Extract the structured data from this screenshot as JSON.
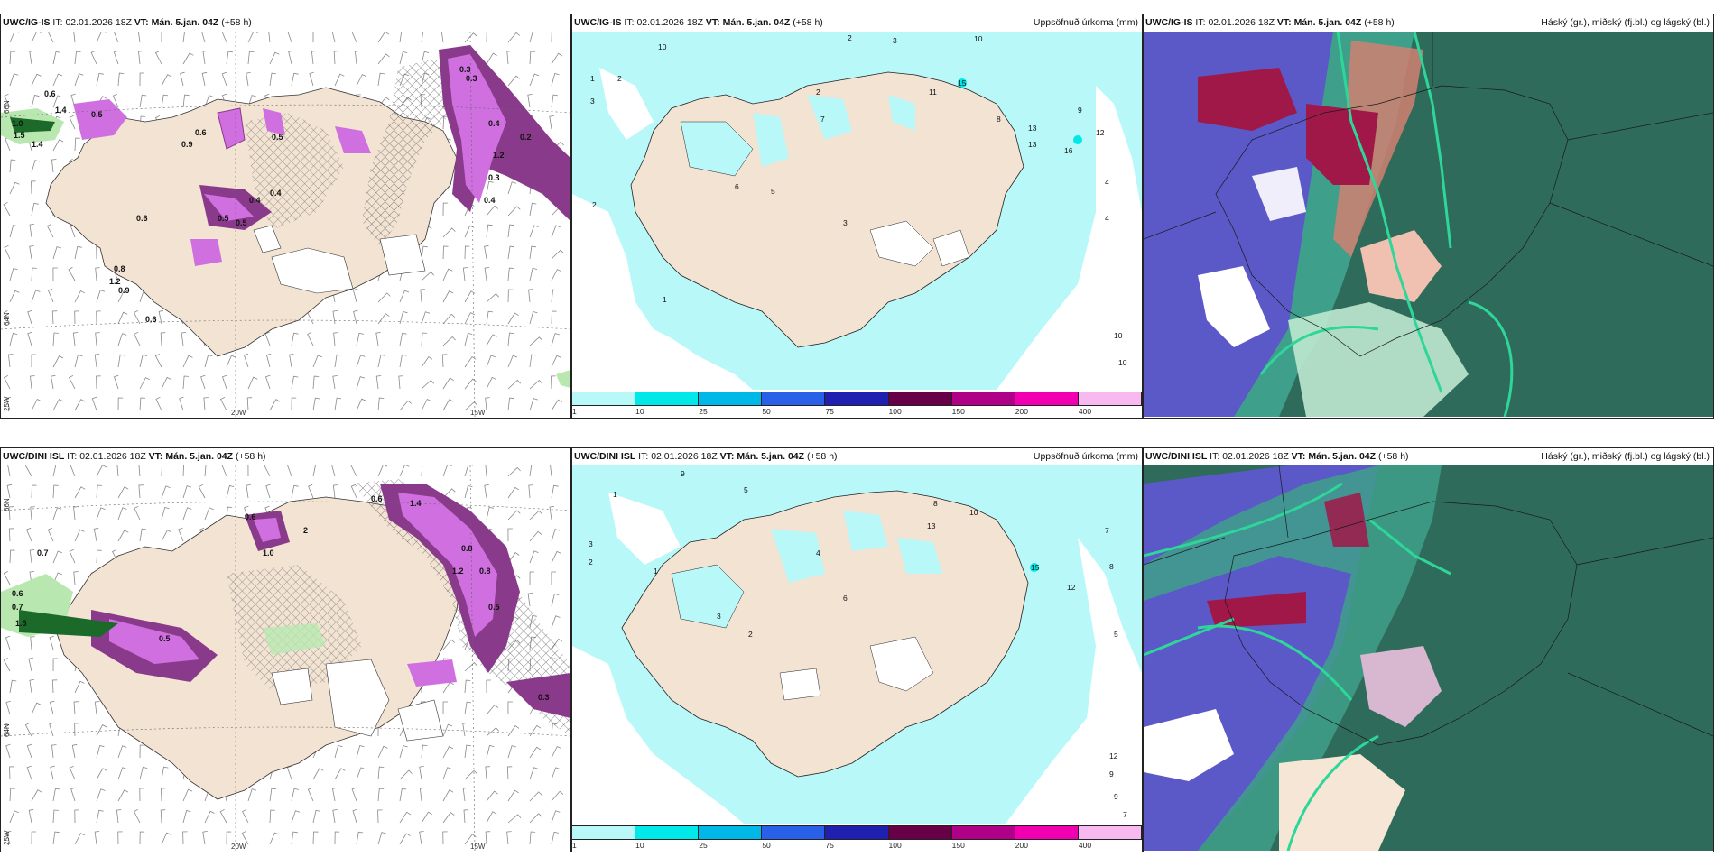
{
  "top": {
    "left": {
      "model": "UWC/IG-IS",
      "it_label": "IT:",
      "it": "02.01.2026 18Z",
      "vt_label": "VT:",
      "vt": "Mán. 5.jan. 04Z",
      "lead": "(+58 h)",
      "right_title": ""
    },
    "mid": {
      "model": "UWC/IG-IS",
      "it_label": "IT:",
      "it": "02.01.2026 18Z",
      "vt_label": "VT:",
      "vt": "Mán. 5.jan. 04Z",
      "lead": "(+58 h)",
      "right_title": "Uppsöfnuð úrkoma (mm)"
    },
    "right": {
      "model": "UWC/IG-IS",
      "it_label": "IT:",
      "it": "02.01.2026 18Z",
      "vt_label": "VT:",
      "vt": "Mán. 5.jan. 04Z",
      "lead": "(+58 h)",
      "right_title": "Háský (gr.), miðský (fj.bl.) og lágský (bl.)"
    }
  },
  "bottom": {
    "left": {
      "model": "UWC/DINI ISL",
      "it_label": "IT:",
      "it": "02.01.2026 18Z",
      "vt_label": "VT:",
      "vt": "Mán. 5.jan. 04Z",
      "lead": "(+58 h)",
      "right_title": ""
    },
    "mid": {
      "model": "UWC/DINI ISL",
      "it_label": "IT:",
      "it": "02.01.2026 18Z",
      "vt_label": "VT:",
      "vt": "Mán. 5.jan. 04Z",
      "lead": "(+58 h)",
      "right_title": "Uppsöfnuð úrkoma (mm)"
    },
    "right": {
      "model": "UWC/DINI ISL",
      "it_label": "IT:",
      "it": "02.01.2026 18Z",
      "vt_label": "VT:",
      "vt": "Mán. 5.jan. 04Z",
      "lead": "(+58 h)",
      "right_title": "Háský (gr.), miðský (fj.bl.) og lágský (bl.)"
    }
  },
  "axes": {
    "lon_labels": [
      "20W",
      "15W"
    ],
    "lat_labels": [
      "66N",
      "64N"
    ],
    "lon_left": "25W"
  },
  "colorbar": {
    "ticks": [
      "1",
      "10",
      "25",
      "50",
      "75",
      "100",
      "150",
      "200",
      "400"
    ],
    "colors": [
      "#b8f8f8",
      "#00e8e8",
      "#00b8e8",
      "#2860e8",
      "#2020b0",
      "#680048",
      "#b00088",
      "#f000b0",
      "#f8b8f0"
    ]
  },
  "colors": {
    "land": "#f3e3d3",
    "sea_white": "#ffffff",
    "precip_light": "#b8f8f8",
    "precip_mid": "#00e8e8",
    "snow_magenta": "#d070e0",
    "snow_dark": "#8a3a8a",
    "green_light": "#b8e8b0",
    "cloud_high": "#2f6b5a",
    "cloud_mid": "#5b58c8",
    "cloud_low": "#2ed69a",
    "cloud_red": "#a01848"
  },
  "labels_top_left": [
    "0.6",
    "1.0",
    "1.5",
    "1.4",
    "0.9",
    "0.6",
    "0.5",
    "0.5",
    "0.4",
    "0.3",
    "0.3",
    "0.4",
    "0.2",
    "1.2",
    "0.3",
    "0.4",
    "0.5",
    "0.6",
    "0.4",
    "0.5",
    "0.8",
    "0.9",
    "0.6",
    "1.2",
    "1.4"
  ],
  "labels_bottom_left": [
    "0.7",
    "0.6",
    "0.7",
    "1.5",
    "0.6",
    "1.0",
    "0.6",
    "1.4",
    "0.8",
    "1.2",
    "0.5",
    "0.3",
    "0.5",
    "0.8",
    "2"
  ],
  "labels_top_mid": [
    "10",
    "1",
    "3",
    "2",
    "2",
    "3",
    "2",
    "10",
    "15",
    "11",
    "13",
    "16",
    "12",
    "10",
    "10",
    "13",
    "4",
    "9",
    "8",
    "6",
    "5",
    "7",
    "3",
    "2",
    "4",
    "1"
  ],
  "labels_bottom_mid": [
    "9",
    "5",
    "1",
    "3",
    "2",
    "8",
    "13",
    "10",
    "15",
    "12",
    "8",
    "7",
    "5",
    "12",
    "9",
    "9",
    "7",
    "6",
    "4",
    "3",
    "2",
    "1"
  ]
}
